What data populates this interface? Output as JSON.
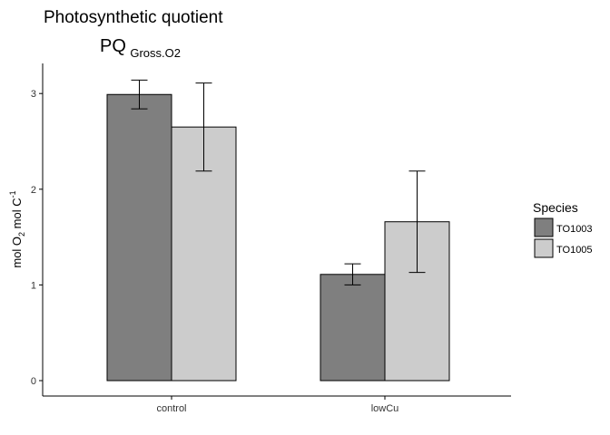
{
  "chart_data": {
    "type": "bar",
    "title": "Photosynthetic quotient",
    "subtitle": {
      "main": "PQ",
      "subscript": "Gross.O2"
    },
    "xlabel": "",
    "ylabel": {
      "p1": "mol  O",
      "sub1": "2",
      "p2": " mol C",
      "sup": "-1"
    },
    "categories": [
      "control",
      "lowCu"
    ],
    "series": [
      {
        "name": "TO1003",
        "color": "#7f7f7f",
        "values": [
          2.99,
          1.11
        ],
        "err_low": [
          2.84,
          1.0
        ],
        "err_high": [
          3.14,
          1.22
        ]
      },
      {
        "name": "TO1005",
        "color": "#cccccc",
        "values": [
          2.65,
          1.66
        ],
        "err_low": [
          2.19,
          1.13
        ],
        "err_high": [
          3.11,
          2.19
        ]
      }
    ],
    "ylim": [
      -0.15,
      3.3
    ],
    "yticks": [
      0,
      1,
      2,
      3
    ],
    "grid": false,
    "legend": {
      "title": "Species",
      "position": "right"
    }
  }
}
